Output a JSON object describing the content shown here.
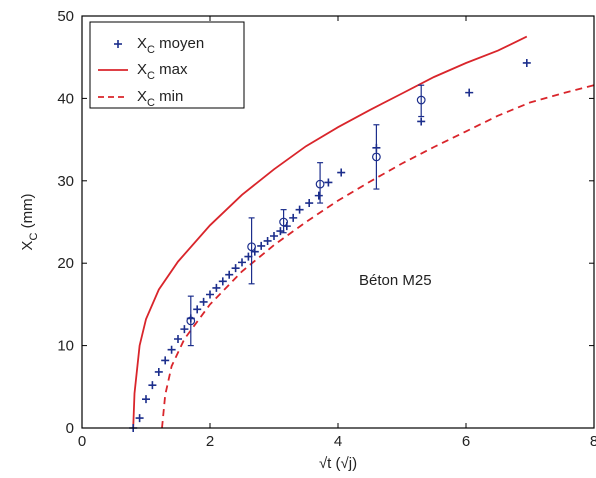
{
  "chart_data": {
    "type": "scatter",
    "xlabel": "√t (√j)",
    "ylabel_main": "X",
    "ylabel_sub": "C",
    "ylabel_unit": " (mm)",
    "xlim": [
      0,
      8
    ],
    "ylim": [
      0,
      50
    ],
    "xticks": [
      0,
      2,
      4,
      6,
      8
    ],
    "yticks": [
      0,
      10,
      20,
      30,
      40,
      50
    ],
    "xtick_labels": [
      "0",
      "2",
      "4",
      "6",
      "8"
    ],
    "ytick_labels": [
      "0",
      "10",
      "20",
      "30",
      "40",
      "50"
    ],
    "grid": false,
    "legend_position": "top-left",
    "annotation": "Béton M25",
    "colors": {
      "series": "#1c2e8c",
      "max": "#d9252b",
      "min": "#d9252b",
      "axis": "#000000"
    },
    "series": [
      {
        "name": "X",
        "name_sub": "C",
        "name_suffix": " moyen",
        "marker": "plus",
        "points": [
          [
            0.8,
            0.0
          ],
          [
            0.9,
            1.2
          ],
          [
            1.0,
            3.5
          ],
          [
            1.1,
            5.2
          ],
          [
            1.2,
            6.8
          ],
          [
            1.3,
            8.2
          ],
          [
            1.4,
            9.5
          ],
          [
            1.5,
            10.8
          ],
          [
            1.6,
            12.0
          ],
          [
            1.7,
            13.3
          ],
          [
            1.8,
            14.4
          ],
          [
            1.9,
            15.3
          ],
          [
            2.0,
            16.2
          ],
          [
            2.1,
            17.0
          ],
          [
            2.2,
            17.8
          ],
          [
            2.3,
            18.6
          ],
          [
            2.4,
            19.4
          ],
          [
            2.5,
            20.1
          ],
          [
            2.6,
            20.8
          ],
          [
            2.7,
            21.4
          ],
          [
            2.8,
            22.1
          ],
          [
            2.9,
            22.7
          ],
          [
            3.0,
            23.3
          ],
          [
            3.1,
            23.9
          ],
          [
            3.2,
            24.5
          ],
          [
            3.3,
            25.5
          ],
          [
            3.4,
            26.5
          ],
          [
            3.55,
            27.3
          ],
          [
            3.7,
            28.2
          ],
          [
            3.85,
            29.8
          ],
          [
            4.05,
            31.0
          ],
          [
            4.6,
            34.0
          ],
          [
            5.3,
            37.2
          ],
          [
            6.05,
            40.7
          ],
          [
            6.95,
            44.3
          ]
        ]
      },
      {
        "name": "X",
        "name_sub": "C",
        "name_suffix": " max",
        "line": "solid",
        "points": [
          [
            0.8,
            0.0
          ],
          [
            0.82,
            4.2
          ],
          [
            0.9,
            10.0
          ],
          [
            1.0,
            13.2
          ],
          [
            1.2,
            16.8
          ],
          [
            1.5,
            20.2
          ],
          [
            2.0,
            24.6
          ],
          [
            2.5,
            28.3
          ],
          [
            3.0,
            31.4
          ],
          [
            3.5,
            34.2
          ],
          [
            4.0,
            36.5
          ],
          [
            4.5,
            38.6
          ],
          [
            5.0,
            40.6
          ],
          [
            5.5,
            42.6
          ],
          [
            6.0,
            44.3
          ],
          [
            6.5,
            45.8
          ],
          [
            6.95,
            47.5
          ]
        ]
      },
      {
        "name": "X",
        "name_sub": "C",
        "name_suffix": " min",
        "line": "dashed",
        "points": [
          [
            1.25,
            0.0
          ],
          [
            1.3,
            4.0
          ],
          [
            1.4,
            7.5
          ],
          [
            1.6,
            10.8
          ],
          [
            2.0,
            15.0
          ],
          [
            2.5,
            19.0
          ],
          [
            3.0,
            22.2
          ],
          [
            3.5,
            25.0
          ],
          [
            4.0,
            27.6
          ],
          [
            4.5,
            29.9
          ],
          [
            5.0,
            32.1
          ],
          [
            5.5,
            34.1
          ],
          [
            6.0,
            36.0
          ],
          [
            6.5,
            37.9
          ],
          [
            7.0,
            39.5
          ],
          [
            7.5,
            40.6
          ],
          [
            8.0,
            41.6
          ]
        ]
      }
    ],
    "error_bars": [
      {
        "x": 1.7,
        "y": 13.0,
        "low": 10.0,
        "high": 16.0
      },
      {
        "x": 2.65,
        "y": 22.0,
        "low": 17.5,
        "high": 25.5
      },
      {
        "x": 3.15,
        "y": 25.0,
        "low": 23.7,
        "high": 26.5
      },
      {
        "x": 3.72,
        "y": 29.6,
        "low": 27.3,
        "high": 32.2
      },
      {
        "x": 4.6,
        "y": 32.9,
        "low": 29.0,
        "high": 36.8
      },
      {
        "x": 5.3,
        "y": 39.8,
        "low": 37.8,
        "high": 41.6
      }
    ]
  }
}
